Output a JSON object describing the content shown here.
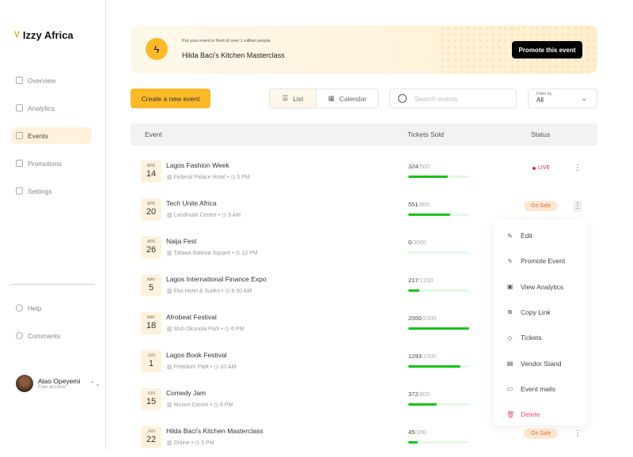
{
  "app": {
    "name": "Izzy Africa"
  },
  "sidebar": {
    "items": [
      {
        "label": "Overview",
        "icon": "compass-icon"
      },
      {
        "label": "Analytics",
        "icon": "chart-icon"
      },
      {
        "label": "Events",
        "icon": "calendar-icon",
        "active": true
      },
      {
        "label": "Promotions",
        "icon": "megaphone-icon"
      },
      {
        "label": "Settings",
        "icon": "gear-icon"
      }
    ],
    "bottom": [
      {
        "label": "Help",
        "icon": "help-icon"
      },
      {
        "label": "Comments",
        "icon": "comment-icon"
      }
    ],
    "user": {
      "name": "Alao Opeyemi",
      "account": "Free account"
    }
  },
  "banner": {
    "subtitle": "Put your event in front of over 1 million people",
    "title": "Hilda Baci's Kitchen Masterclass",
    "button": "Promote this event"
  },
  "toolbar": {
    "create": "Create a new event",
    "list": "List",
    "calendar": "Calendar",
    "search_placeholder": "Search events",
    "filter_label": "Filter by",
    "filter_value": "All"
  },
  "table": {
    "headers": {
      "event": "Event",
      "tickets": "Tickets Sold",
      "status": "Status"
    },
    "rows": [
      {
        "month": "APR",
        "day": "14",
        "name": "Lagos Fashion Week",
        "venue": "Federal Palace Hotel",
        "time": "5 PM",
        "sold": "324",
        "capacity": "/500",
        "pct": 64.8,
        "status": "LIVE"
      },
      {
        "month": "APR",
        "day": "20",
        "name": "Tech Unite Africa",
        "venue": "Landmark Centre",
        "time": "9 AM",
        "sold": "551",
        "capacity": "/800",
        "pct": 68.9,
        "status": "On Sale"
      },
      {
        "month": "APR",
        "day": "26",
        "name": "Naija Fest",
        "venue": "Tafawa Balewa Square",
        "time": "12 PM",
        "sold": "0",
        "capacity": "/3000",
        "pct": 0,
        "status": ""
      },
      {
        "month": "MAY",
        "day": "5",
        "name": "Lagos International Finance Expo",
        "venue": "Eko Hotel & Suites",
        "time": "8:30 AM",
        "sold": "217",
        "capacity": "/1200",
        "pct": 18.1,
        "status": ""
      },
      {
        "month": "MAY",
        "day": "18",
        "name": "Afrobeat Festival",
        "venue": "Muri Okunola Park",
        "time": "6 PM",
        "sold": "2000",
        "capacity": "/2000",
        "pct": 100,
        "status": ""
      },
      {
        "month": "JUN",
        "day": "1",
        "name": "Lagos Book Festival",
        "venue": "Freedom Park",
        "time": "10 AM",
        "sold": "1293",
        "capacity": "/1500",
        "pct": 86.2,
        "status": ""
      },
      {
        "month": "JUN",
        "day": "15",
        "name": "Comedy Jam",
        "venue": "Muson Centre",
        "time": "8 PM",
        "sold": "372",
        "capacity": "/800",
        "pct": 46.5,
        "status": ""
      },
      {
        "month": "JUN",
        "day": "22",
        "name": "Hilda Baci's Kitchen Masterclass",
        "venue": "Online",
        "time": "5 PM",
        "sold": "45",
        "capacity": "/300",
        "pct": 15,
        "status": "On Sale"
      }
    ]
  },
  "menu": {
    "items": [
      {
        "label": "Edit",
        "icon": "pencil-icon",
        "glyph": "✎"
      },
      {
        "label": "Promote Event",
        "icon": "bolt-icon",
        "glyph": "ϟ"
      },
      {
        "label": "View Analytics",
        "icon": "analytics-icon",
        "glyph": "▣"
      },
      {
        "label": "Copy Link",
        "icon": "copy-icon",
        "glyph": "⧉"
      },
      {
        "label": "Tickets",
        "icon": "ticket-icon",
        "glyph": "◇"
      },
      {
        "label": "Vendor Stand",
        "icon": "store-icon",
        "glyph": "▤"
      },
      {
        "label": "Event mails",
        "icon": "mail-icon",
        "glyph": "▭"
      },
      {
        "label": "Delete",
        "icon": "trash-icon",
        "glyph": "🗑"
      }
    ]
  },
  "colors": {
    "accent": "#fbb928",
    "progress": "#16c416",
    "live": "#e8283e",
    "on_sale_bg": "#fde7d3",
    "on_sale_text": "#e07040",
    "delete": "#f04f6a"
  }
}
